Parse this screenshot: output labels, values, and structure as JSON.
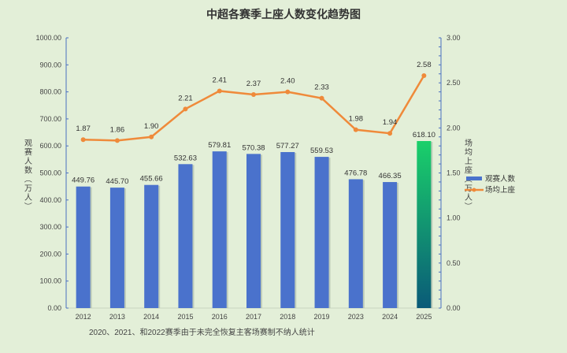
{
  "chart_data": {
    "type": "bar+line",
    "title": "中超各赛季上座人数变化趋势图",
    "categories": [
      "2012",
      "2013",
      "2014",
      "2015",
      "2016",
      "2017",
      "2018",
      "2019",
      "2023",
      "2024",
      "2025"
    ],
    "series": [
      {
        "name": "观赛人数",
        "type": "bar",
        "axis": "left",
        "color": "#4a72cc",
        "values": [
          449.76,
          445.7,
          455.66,
          532.63,
          579.81,
          570.38,
          577.27,
          559.53,
          476.78,
          466.35,
          618.1
        ],
        "labels": [
          "449.76",
          "445.70",
          "455.66",
          "532.63",
          "579.81",
          "570.38",
          "577.27",
          "559.53",
          "476.78",
          "466.35",
          "618.10"
        ]
      },
      {
        "name": "场均上座",
        "type": "line",
        "axis": "right",
        "color": "#ef8a3a",
        "values": [
          1.87,
          1.86,
          1.9,
          2.21,
          2.41,
          2.37,
          2.4,
          2.33,
          1.98,
          1.94,
          2.58
        ],
        "labels": [
          "1.87",
          "1.86",
          "1.90",
          "2.21",
          "2.41",
          "2.37",
          "2.40",
          "2.33",
          "1.98",
          "1.94",
          "2.58"
        ]
      }
    ],
    "ylabel": "观赛人数（万人）",
    "y2label": "场均上座（万人）",
    "ylim": [
      0,
      1000
    ],
    "y2lim": [
      0,
      3
    ],
    "yticks": [
      "0.00",
      "100.00",
      "200.00",
      "300.00",
      "400.00",
      "500.00",
      "600.00",
      "700.00",
      "800.00",
      "900.00",
      "1000.00"
    ],
    "y2ticks": [
      "0.00",
      "0.50",
      "1.00",
      "1.50",
      "2.00",
      "2.50",
      "3.00"
    ],
    "highlight": {
      "category": "2025",
      "gradient": [
        "#1ad06a",
        "#0a5a78"
      ]
    },
    "legend_position": "right",
    "grid": false,
    "note": "2020、2021、和2022赛季由于未完全恢复主客场赛制不纳人统计"
  }
}
